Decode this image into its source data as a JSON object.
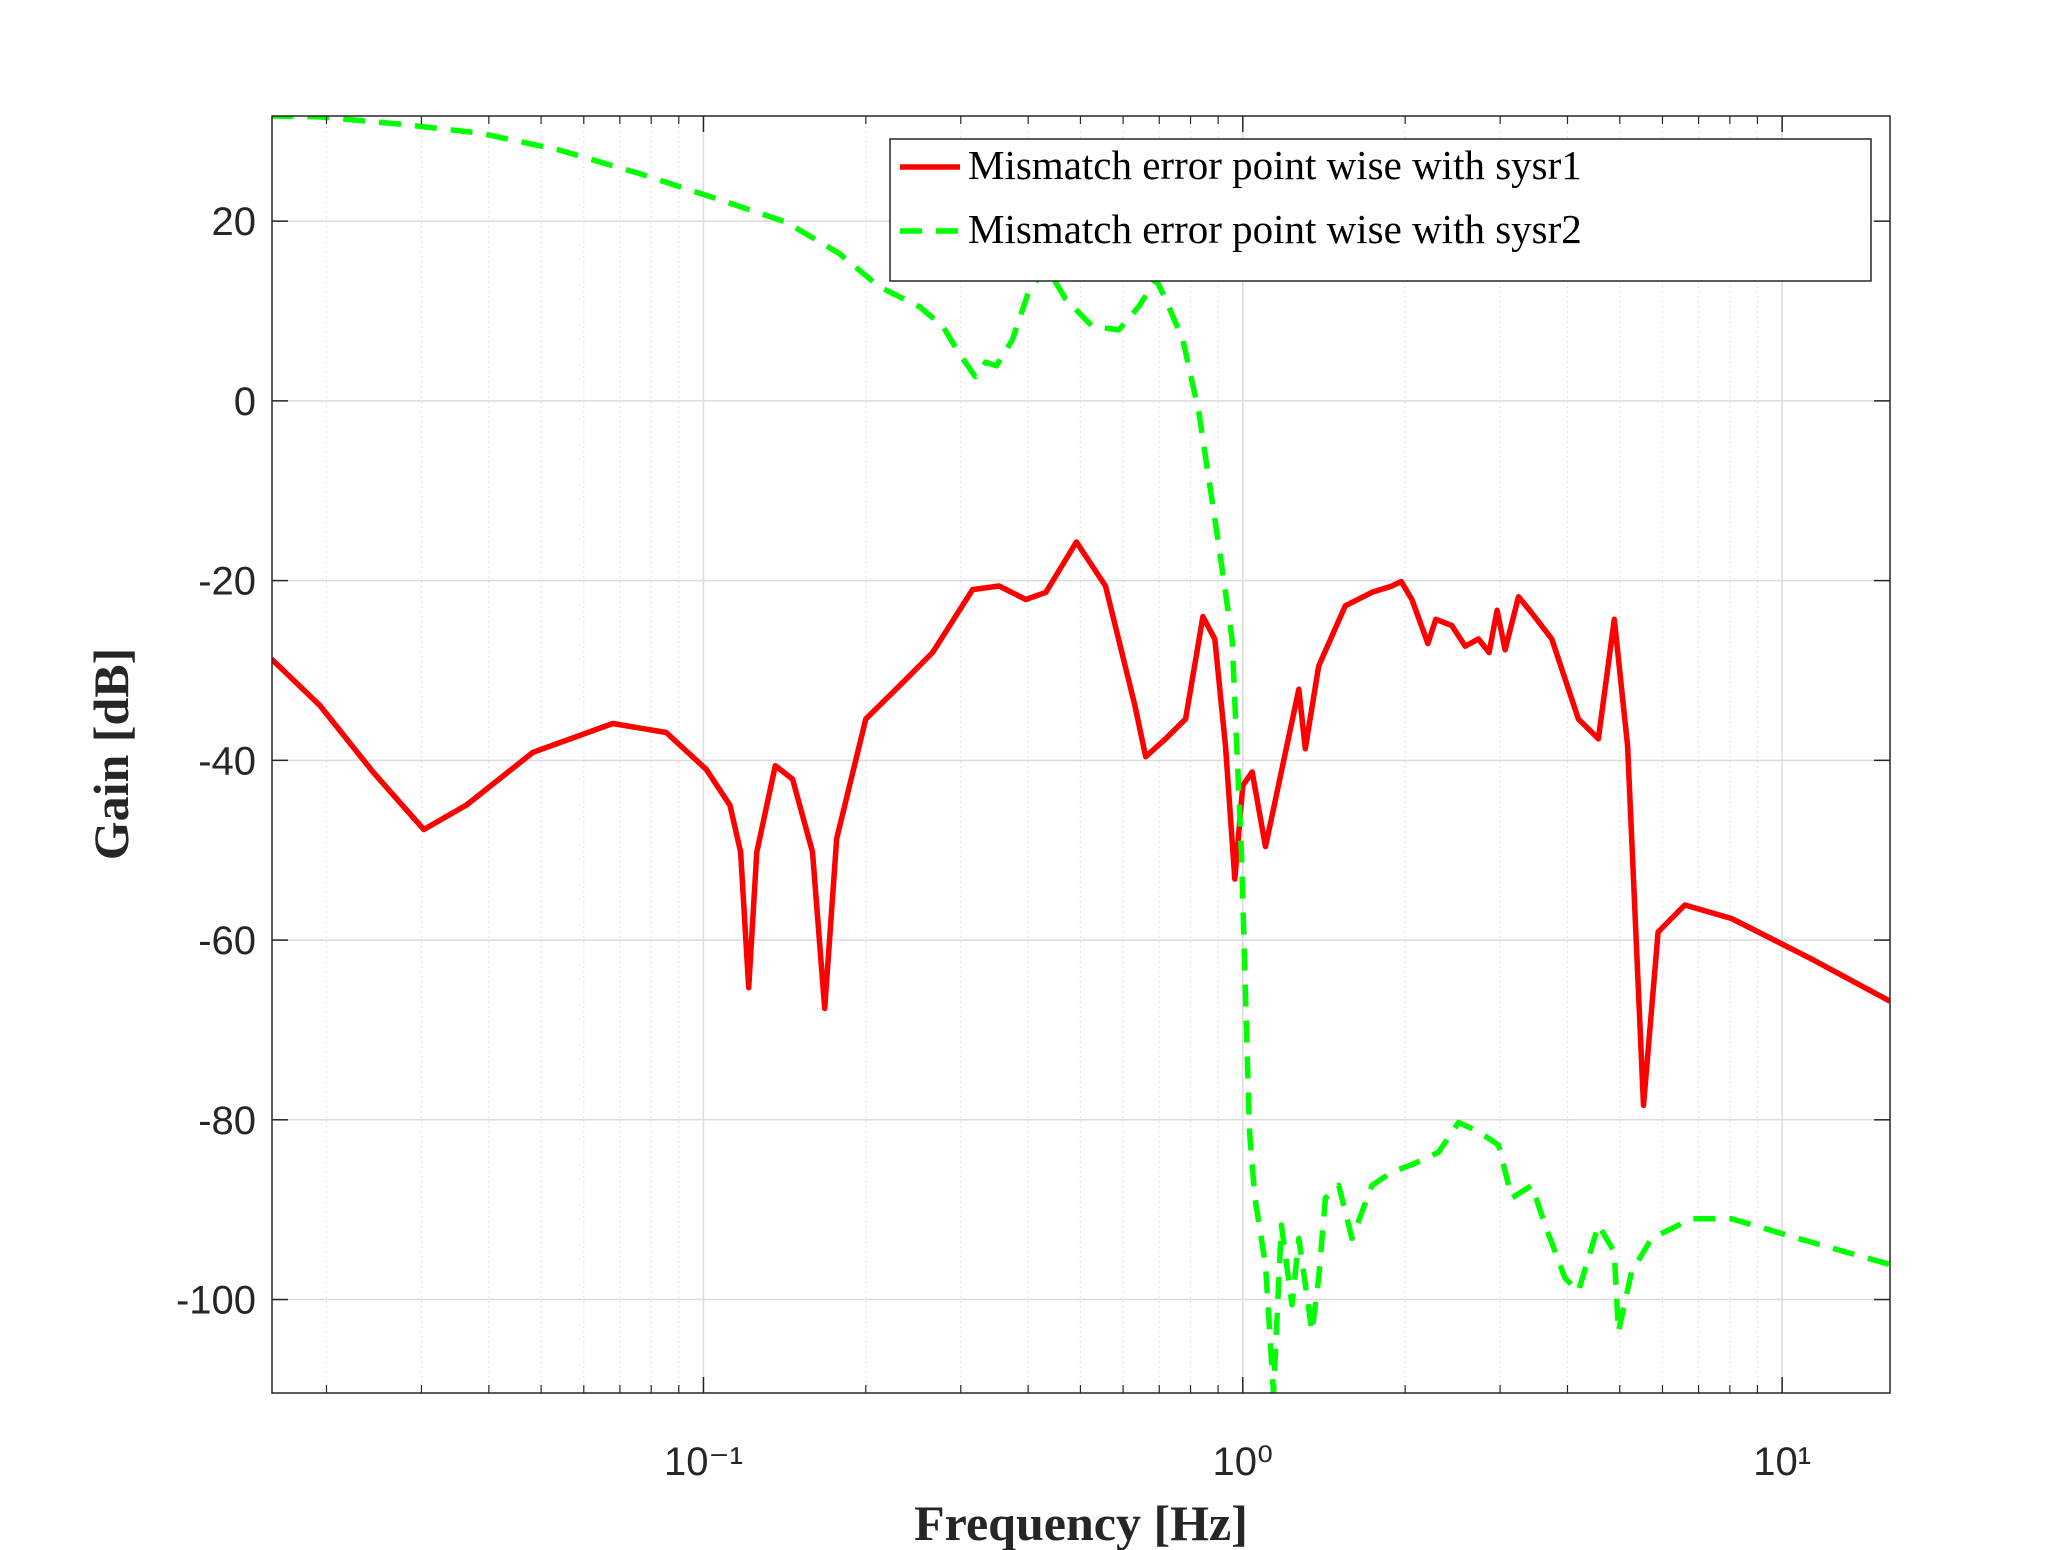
{
  "chart_data": {
    "type": "line",
    "x_label": "Frequency [Hz]",
    "y_label": "Gain [dB]",
    "xscale": "log",
    "xlim": [
      0.01585,
      15.85
    ],
    "ylim": [
      -110.4,
      31.7
    ],
    "xticks": [
      {
        "value": 0.1,
        "label": "10⁻¹"
      },
      {
        "value": 1,
        "label": "10⁰"
      },
      {
        "value": 10,
        "label": "10¹"
      }
    ],
    "yticks": [
      -100,
      -80,
      -60,
      -40,
      -20,
      0,
      20
    ],
    "grid": true,
    "minor_grid": true,
    "legend": "upper right",
    "series": [
      {
        "name": "Mismatch error point wise with sysr1",
        "color": "#ff0000",
        "style": "solid",
        "x": [
          0.0158,
          0.01945,
          0.0244,
          0.0303,
          0.0363,
          0.0483,
          0.0679,
          0.0853,
          0.1012,
          0.112,
          0.1172,
          0.1213,
          0.1256,
          0.1359,
          0.1463,
          0.1593,
          0.1678,
          0.1766,
          0.2,
          0.2372,
          0.266,
          0.3155,
          0.3533,
          0.3961,
          0.4315,
          0.4914,
          0.5565,
          0.631,
          0.6607,
          0.7194,
          0.7834,
          0.8433,
          0.8873,
          0.9289,
          0.9665,
          1,
          1.041,
          1.102,
          1.27,
          1.306,
          1.383,
          1.549,
          1.736,
          1.891,
          1.967,
          2.059,
          2.204,
          2.28,
          2.441,
          2.585,
          2.735,
          2.862,
          2.962,
          3.065,
          3.245,
          3.435,
          3.741,
          4.191,
          4.564,
          4.885,
          5.171,
          5.534,
          5.89,
          6.6,
          8.057,
          11.33,
          15.85
        ],
        "values": [
          -28.7,
          -33.9,
          -41.3,
          -47.7,
          -45.0,
          -39.1,
          -35.9,
          -36.9,
          -41.0,
          -45.0,
          -50.2,
          -65.3,
          -50.2,
          -40.6,
          -42.1,
          -50.2,
          -67.6,
          -48.7,
          -35.4,
          -31.0,
          -28.0,
          -21.0,
          -20.6,
          -22.1,
          -21.3,
          -15.7,
          -20.6,
          -33.9,
          -39.6,
          -37.6,
          -35.4,
          -24.0,
          -26.5,
          -38.4,
          -53.2,
          -42.8,
          -41.3,
          -49.6,
          -32.1,
          -38.7,
          -29.5,
          -22.8,
          -21.3,
          -20.6,
          -20.1,
          -22.1,
          -27.0,
          -24.3,
          -25.0,
          -27.3,
          -26.5,
          -28.0,
          -23.3,
          -27.7,
          -21.8,
          -23.6,
          -26.5,
          -35.4,
          -37.6,
          -24.3,
          -38.4,
          -78.4,
          -59.1,
          -56.1,
          -57.6,
          -62.1,
          -66.8
        ]
      },
      {
        "name": "Mismatch error point wise with sysr2",
        "color": "#00ff00",
        "style": "dashed",
        "x": [
          0.0158,
          0.01945,
          0.0274,
          0.0385,
          0.0541,
          0.076,
          0.107,
          0.1422,
          0.1786,
          0.2118,
          0.2512,
          0.278,
          0.2978,
          0.319,
          0.3337,
          0.3493,
          0.374,
          0.4,
          0.4315,
          0.4697,
          0.526,
          0.589,
          0.6414,
          0.6911,
          0.7194,
          0.7743,
          0.829,
          0.9028,
          0.9555,
          0.9943,
          1.029,
          1.053,
          1.102,
          1.14,
          1.179,
          1.234,
          1.27,
          1.344,
          1.383,
          1.423,
          1.506,
          1.594,
          1.736,
          1.891,
          2.059,
          2.307,
          2.512,
          2.735,
          2.979,
          3.154,
          3.435,
          3.636,
          3.958,
          4.191,
          4.564,
          4.885,
          4.97,
          5.26,
          5.728,
          6.792,
          8.057,
          10.71,
          15.85
        ],
        "values": [
          31.7,
          31.6,
          30.8,
          29.8,
          27.9,
          25.3,
          22.4,
          19.9,
          16.4,
          12.7,
          10.5,
          8.3,
          5.3,
          2.7,
          4.3,
          3.9,
          6.8,
          12.0,
          15.0,
          11.3,
          8.3,
          7.9,
          10.5,
          13.5,
          11.3,
          6.8,
          -1.3,
          -16.1,
          -26.5,
          -50.2,
          -81.3,
          -88.7,
          -96.1,
          -110.4,
          -91.7,
          -100.6,
          -93.2,
          -103.6,
          -97.6,
          -88.7,
          -87.3,
          -93.2,
          -87.3,
          -85.8,
          -85.0,
          -83.6,
          -80.3,
          -81.3,
          -82.8,
          -88.7,
          -87.3,
          -91.7,
          -97.6,
          -99.1,
          -91.7,
          -94.7,
          -103.6,
          -96.9,
          -93.2,
          -91.0,
          -91.0,
          -93.2,
          -96.1
        ]
      }
    ]
  }
}
